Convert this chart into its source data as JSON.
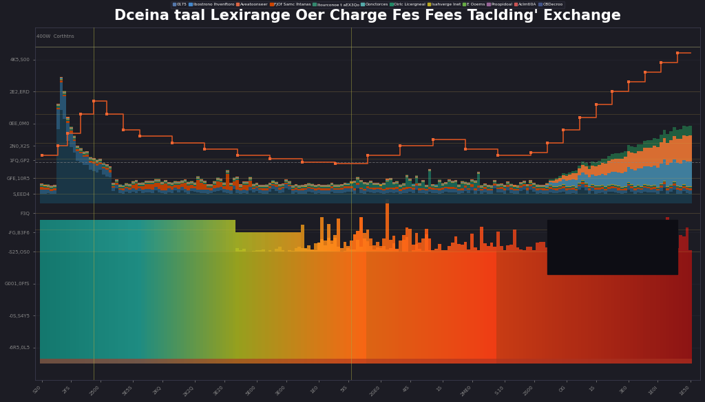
{
  "title": "Dceina taal Lexirange Oer Charge Fes Fees Taclding' Exchange",
  "background_color": "#1c1c24",
  "plot_bg_color": "#1c1c24",
  "legend_entries": [
    {
      "label": "0175",
      "color": "#5577aa"
    },
    {
      "label": "Ibostrono Ihvenftoro",
      "color": "#4488cc"
    },
    {
      "label": "Aveatoonseer",
      "color": "#dd6644"
    },
    {
      "label": "FJOf Samc Ihtanas",
      "color": "#cc4400"
    },
    {
      "label": "Itourconoe t aEX3Qo",
      "color": "#33886e"
    },
    {
      "label": "Oonctorces",
      "color": "#55aaaa"
    },
    {
      "label": "Oirlc Licergneal",
      "color": "#228866"
    },
    {
      "label": "Isahverge Inet",
      "color": "#bbaa22"
    },
    {
      "label": "E Ooems",
      "color": "#66aa44"
    },
    {
      "label": "Proopidoal",
      "color": "#996699"
    },
    {
      "label": "AcImtI0A",
      "color": "#cc5555"
    },
    {
      "label": "CBDecroo",
      "color": "#445588"
    }
  ],
  "n_bars": 200,
  "grid_color": "#383848",
  "step_line_color": "#dd5522",
  "marker_color": "#ee6633",
  "hline_color": "#ccaa44",
  "vline_color": "#aaaa44",
  "hline_dashed_color": "#aaaaaa",
  "top_hline_color": "#cccc88"
}
